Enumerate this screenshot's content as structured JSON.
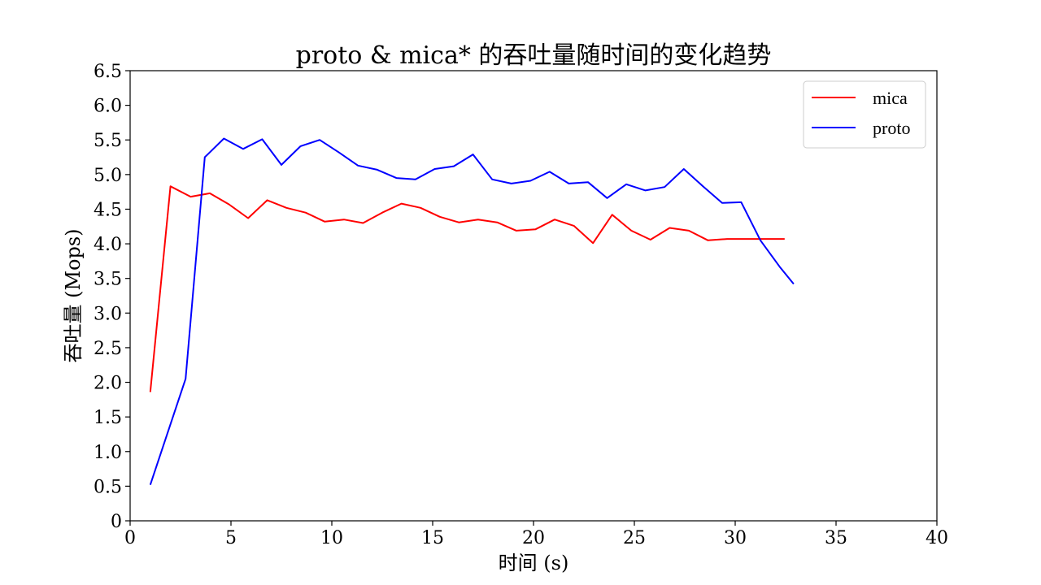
{
  "chart_data": {
    "type": "line",
    "title": "proto & mica* 的吞吐量随时间的变化趋势",
    "xlabel": "时间 (s)",
    "ylabel": "吞吐量 (Mops)",
    "xlim": [
      0,
      40
    ],
    "ylim": [
      0,
      6.5
    ],
    "xticks": [
      0,
      5,
      10,
      15,
      20,
      25,
      30,
      35,
      40
    ],
    "xtick_labels": [
      "0",
      "5",
      "10",
      "15",
      "20",
      "25",
      "30",
      "35",
      "40"
    ],
    "yticks": [
      0,
      0.5,
      1.0,
      1.5,
      2.0,
      2.5,
      3.0,
      3.5,
      4.0,
      4.5,
      5.0,
      5.5,
      6.0,
      6.5
    ],
    "ytick_labels": [
      "0",
      "0.5",
      "1.0",
      "1.5",
      "2.0",
      "2.5",
      "3.0",
      "3.5",
      "4.0",
      "4.5",
      "5.0",
      "5.5",
      "6.0",
      "6.5"
    ],
    "legend_position": "top-right",
    "grid": false,
    "series": [
      {
        "name": "mica",
        "color": "#ff0000",
        "x": [
          1.0,
          2.0,
          3.0,
          3.95,
          4.9,
          5.85,
          6.8,
          7.75,
          8.7,
          9.65,
          10.6,
          11.55,
          12.5,
          13.45,
          14.4,
          15.35,
          16.3,
          17.25,
          18.2,
          19.15,
          20.1,
          21.05,
          22.0,
          22.95,
          23.9,
          24.85,
          25.8,
          26.75,
          27.7,
          28.65,
          29.6,
          30.55,
          31.5,
          32.45
        ],
        "values": [
          1.86,
          4.83,
          4.68,
          4.73,
          4.57,
          4.37,
          4.63,
          4.52,
          4.45,
          4.32,
          4.35,
          4.3,
          4.45,
          4.58,
          4.52,
          4.39,
          4.31,
          4.35,
          4.31,
          4.19,
          4.21,
          4.35,
          4.26,
          4.01,
          4.42,
          4.19,
          4.06,
          4.23,
          4.19,
          4.05,
          4.07,
          4.07,
          4.07,
          4.07
        ]
      },
      {
        "name": "proto",
        "color": "#0000ff",
        "x": [
          1.0,
          2.75,
          3.7,
          4.65,
          5.6,
          6.55,
          7.5,
          8.45,
          9.4,
          10.35,
          11.3,
          12.25,
          13.2,
          14.15,
          15.1,
          16.05,
          17.0,
          17.95,
          18.9,
          19.85,
          20.8,
          21.75,
          22.7,
          23.65,
          24.6,
          25.55,
          26.5,
          27.45,
          28.4,
          29.35,
          30.3,
          31.25,
          32.2,
          32.9
        ],
        "values": [
          0.52,
          2.05,
          5.25,
          5.52,
          5.37,
          5.51,
          5.14,
          5.41,
          5.5,
          5.32,
          5.13,
          5.07,
          4.95,
          4.93,
          5.08,
          5.12,
          5.29,
          4.93,
          4.87,
          4.91,
          5.04,
          4.87,
          4.89,
          4.66,
          4.86,
          4.77,
          4.82,
          5.08,
          4.83,
          4.59,
          4.6,
          4.05,
          3.67,
          3.42
        ]
      }
    ]
  }
}
